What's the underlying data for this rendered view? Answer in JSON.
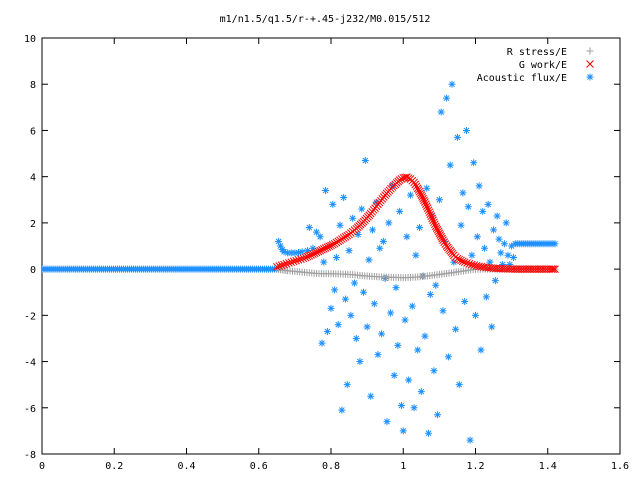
{
  "chart_data": {
    "type": "scatter",
    "title": "m1/n1.5/q1.5/r-+.45-j232/M0.015/512",
    "xlabel": "",
    "ylabel": "",
    "xlim": [
      0,
      1.6
    ],
    "ylim": [
      -8,
      10
    ],
    "x_ticks": [
      0,
      0.2,
      0.4,
      0.6,
      0.8,
      1,
      1.2,
      1.4,
      1.6
    ],
    "x_tick_labels": [
      "0",
      "0.2",
      "0.4",
      "0.6",
      "0.8",
      "1",
      "1.2",
      "1.4",
      "1.6"
    ],
    "y_ticks": [
      -8,
      -6,
      -4,
      -2,
      0,
      2,
      4,
      6,
      8,
      10
    ],
    "y_tick_labels": [
      "-8",
      "-6",
      "-4",
      "-2",
      "0",
      "2",
      "4",
      "6",
      "8",
      "10"
    ],
    "grid": false,
    "legend_position": "top-right",
    "series": [
      {
        "name": "R stress/E",
        "marker": "+",
        "color": "#a0a0a0",
        "points": [
          [
            0.65,
            0.0
          ],
          [
            0.66,
            -0.02
          ],
          [
            0.67,
            -0.05
          ],
          [
            0.68,
            -0.07
          ],
          [
            0.7,
            -0.1
          ],
          [
            0.72,
            -0.13
          ],
          [
            0.74,
            -0.16
          ],
          [
            0.76,
            -0.19
          ],
          [
            0.78,
            -0.2
          ],
          [
            0.8,
            -0.2
          ],
          [
            0.82,
            -0.21
          ],
          [
            0.84,
            -0.22
          ],
          [
            0.86,
            -0.24
          ],
          [
            0.88,
            -0.27
          ],
          [
            0.9,
            -0.3
          ],
          [
            0.92,
            -0.32
          ],
          [
            0.94,
            -0.34
          ],
          [
            0.96,
            -0.35
          ],
          [
            0.98,
            -0.36
          ],
          [
            1.0,
            -0.37
          ],
          [
            1.02,
            -0.36
          ],
          [
            1.04,
            -0.34
          ],
          [
            1.06,
            -0.31
          ],
          [
            1.08,
            -0.27
          ],
          [
            1.1,
            -0.23
          ],
          [
            1.12,
            -0.19
          ],
          [
            1.14,
            -0.14
          ],
          [
            1.16,
            -0.1
          ],
          [
            1.18,
            -0.05
          ],
          [
            1.2,
            -0.01
          ],
          [
            1.22,
            0.0
          ],
          [
            1.24,
            0.0
          ],
          [
            1.26,
            0.0
          ],
          [
            1.28,
            0.0
          ],
          [
            1.3,
            0.0
          ],
          [
            1.32,
            0.0
          ],
          [
            1.34,
            0.0
          ],
          [
            1.36,
            0.0
          ],
          [
            1.38,
            0.0
          ],
          [
            1.4,
            0.0
          ],
          [
            1.42,
            0.0
          ]
        ]
      },
      {
        "name": "G work/E",
        "marker": "x",
        "color": "#ff0000",
        "points": [
          [
            0.65,
            0.1
          ],
          [
            0.67,
            0.2
          ],
          [
            0.69,
            0.3
          ],
          [
            0.71,
            0.4
          ],
          [
            0.73,
            0.5
          ],
          [
            0.75,
            0.65
          ],
          [
            0.77,
            0.8
          ],
          [
            0.79,
            0.95
          ],
          [
            0.81,
            1.1
          ],
          [
            0.83,
            1.3
          ],
          [
            0.85,
            1.5
          ],
          [
            0.87,
            1.75
          ],
          [
            0.89,
            2.05
          ],
          [
            0.91,
            2.4
          ],
          [
            0.93,
            2.8
          ],
          [
            0.95,
            3.2
          ],
          [
            0.97,
            3.55
          ],
          [
            0.99,
            3.85
          ],
          [
            1.0,
            3.95
          ],
          [
            1.01,
            3.98
          ],
          [
            1.02,
            3.9
          ],
          [
            1.03,
            3.75
          ],
          [
            1.04,
            3.5
          ],
          [
            1.05,
            3.2
          ],
          [
            1.06,
            2.9
          ],
          [
            1.07,
            2.55
          ],
          [
            1.08,
            2.2
          ],
          [
            1.09,
            1.85
          ],
          [
            1.1,
            1.55
          ],
          [
            1.11,
            1.25
          ],
          [
            1.12,
            1.0
          ],
          [
            1.13,
            0.8
          ],
          [
            1.14,
            0.6
          ],
          [
            1.15,
            0.45
          ],
          [
            1.17,
            0.3
          ],
          [
            1.19,
            0.2
          ],
          [
            1.21,
            0.12
          ],
          [
            1.23,
            0.07
          ],
          [
            1.25,
            0.04
          ],
          [
            1.27,
            0.02
          ],
          [
            1.29,
            0.01
          ],
          [
            1.31,
            0.0
          ],
          [
            1.33,
            0.0
          ],
          [
            1.35,
            0.0
          ],
          [
            1.37,
            0.0
          ],
          [
            1.39,
            0.0
          ],
          [
            1.41,
            0.0
          ],
          [
            1.42,
            0.0
          ]
        ]
      },
      {
        "name": "Acoustic flux/E",
        "marker": "*",
        "color": "#1e90ff",
        "flat_segments": [
          {
            "x_start": 0.0,
            "x_end": 0.65,
            "y": 0.0
          },
          {
            "x_start": 1.31,
            "x_end": 1.42,
            "y": 1.1
          }
        ],
        "points": [
          [
            0.655,
            1.2
          ],
          [
            0.66,
            1.0
          ],
          [
            0.665,
            0.85
          ],
          [
            0.67,
            0.75
          ],
          [
            0.68,
            0.7
          ],
          [
            0.69,
            0.7
          ],
          [
            0.7,
            0.7
          ],
          [
            0.71,
            0.72
          ],
          [
            0.72,
            0.75
          ],
          [
            0.735,
            0.8
          ],
          [
            0.74,
            1.8
          ],
          [
            0.75,
            0.9
          ],
          [
            0.76,
            1.6
          ],
          [
            0.77,
            1.4
          ],
          [
            0.775,
            -3.2
          ],
          [
            0.78,
            0.3
          ],
          [
            0.785,
            3.4
          ],
          [
            0.79,
            -2.7
          ],
          [
            0.795,
            1.0
          ],
          [
            0.8,
            -1.7
          ],
          [
            0.805,
            2.8
          ],
          [
            0.81,
            -0.9
          ],
          [
            0.815,
            0.5
          ],
          [
            0.82,
            -2.4
          ],
          [
            0.825,
            1.9
          ],
          [
            0.83,
            -6.1
          ],
          [
            0.835,
            3.1
          ],
          [
            0.84,
            -1.3
          ],
          [
            0.845,
            -5.0
          ],
          [
            0.85,
            0.8
          ],
          [
            0.855,
            -2.0
          ],
          [
            0.86,
            2.2
          ],
          [
            0.865,
            -0.6
          ],
          [
            0.87,
            -3.0
          ],
          [
            0.875,
            1.5
          ],
          [
            0.88,
            -4.0
          ],
          [
            0.885,
            2.6
          ],
          [
            0.89,
            -1.0
          ],
          [
            0.895,
            4.7
          ],
          [
            0.9,
            -2.5
          ],
          [
            0.905,
            0.4
          ],
          [
            0.91,
            -5.5
          ],
          [
            0.915,
            1.7
          ],
          [
            0.92,
            -1.5
          ],
          [
            0.925,
            2.9
          ],
          [
            0.93,
            -3.7
          ],
          [
            0.935,
            0.9
          ],
          [
            0.94,
            -2.8
          ],
          [
            0.945,
            1.2
          ],
          [
            0.95,
            -0.4
          ],
          [
            0.955,
            -6.6
          ],
          [
            0.96,
            2.0
          ],
          [
            0.965,
            -1.9
          ],
          [
            0.97,
            3.6
          ],
          [
            0.975,
            -4.6
          ],
          [
            0.98,
            -0.8
          ],
          [
            0.985,
            -3.3
          ],
          [
            0.99,
            2.5
          ],
          [
            0.995,
            -5.9
          ],
          [
            1.0,
            -7.0
          ],
          [
            1.005,
            -2.2
          ],
          [
            1.01,
            1.4
          ],
          [
            1.015,
            -4.8
          ],
          [
            1.02,
            3.2
          ],
          [
            1.025,
            -1.6
          ],
          [
            1.03,
            -6.0
          ],
          [
            1.035,
            0.6
          ],
          [
            1.04,
            -3.5
          ],
          [
            1.045,
            1.8
          ],
          [
            1.05,
            -5.3
          ],
          [
            1.055,
            -0.3
          ],
          [
            1.06,
            -2.9
          ],
          [
            1.065,
            3.5
          ],
          [
            1.07,
            -7.1
          ],
          [
            1.075,
            -1.1
          ],
          [
            1.08,
            2.3
          ],
          [
            1.085,
            -4.4
          ],
          [
            1.09,
            -0.7
          ],
          [
            1.095,
            -6.3
          ],
          [
            1.1,
            3.0
          ],
          [
            1.105,
            6.8
          ],
          [
            1.11,
            -1.8
          ],
          [
            1.115,
            1.2
          ],
          [
            1.12,
            7.4
          ],
          [
            1.125,
            -3.8
          ],
          [
            1.13,
            4.5
          ],
          [
            1.135,
            8.0
          ],
          [
            1.14,
            0.3
          ],
          [
            1.145,
            -2.6
          ],
          [
            1.15,
            5.7
          ],
          [
            1.155,
            -5.0
          ],
          [
            1.16,
            1.9
          ],
          [
            1.165,
            3.3
          ],
          [
            1.17,
            -1.4
          ],
          [
            1.175,
            6.0
          ],
          [
            1.18,
            2.7
          ],
          [
            1.185,
            -7.4
          ],
          [
            1.19,
            0.6
          ],
          [
            1.195,
            4.6
          ],
          [
            1.2,
            -2.0
          ],
          [
            1.205,
            1.4
          ],
          [
            1.21,
            3.6
          ],
          [
            1.215,
            -3.5
          ],
          [
            1.22,
            2.5
          ],
          [
            1.225,
            0.9
          ],
          [
            1.23,
            -1.2
          ],
          [
            1.235,
            2.8
          ],
          [
            1.24,
            0.3
          ],
          [
            1.245,
            -2.5
          ],
          [
            1.25,
            1.7
          ],
          [
            1.255,
            -0.5
          ],
          [
            1.26,
            2.3
          ],
          [
            1.265,
            1.3
          ],
          [
            1.27,
            0.7
          ],
          [
            1.275,
            0.2
          ],
          [
            1.28,
            1.1
          ],
          [
            1.285,
            2.0
          ],
          [
            1.29,
            0.6
          ],
          [
            1.295,
            0.2
          ],
          [
            1.3,
            1.0
          ],
          [
            1.305,
            0.5
          ]
        ]
      }
    ]
  }
}
